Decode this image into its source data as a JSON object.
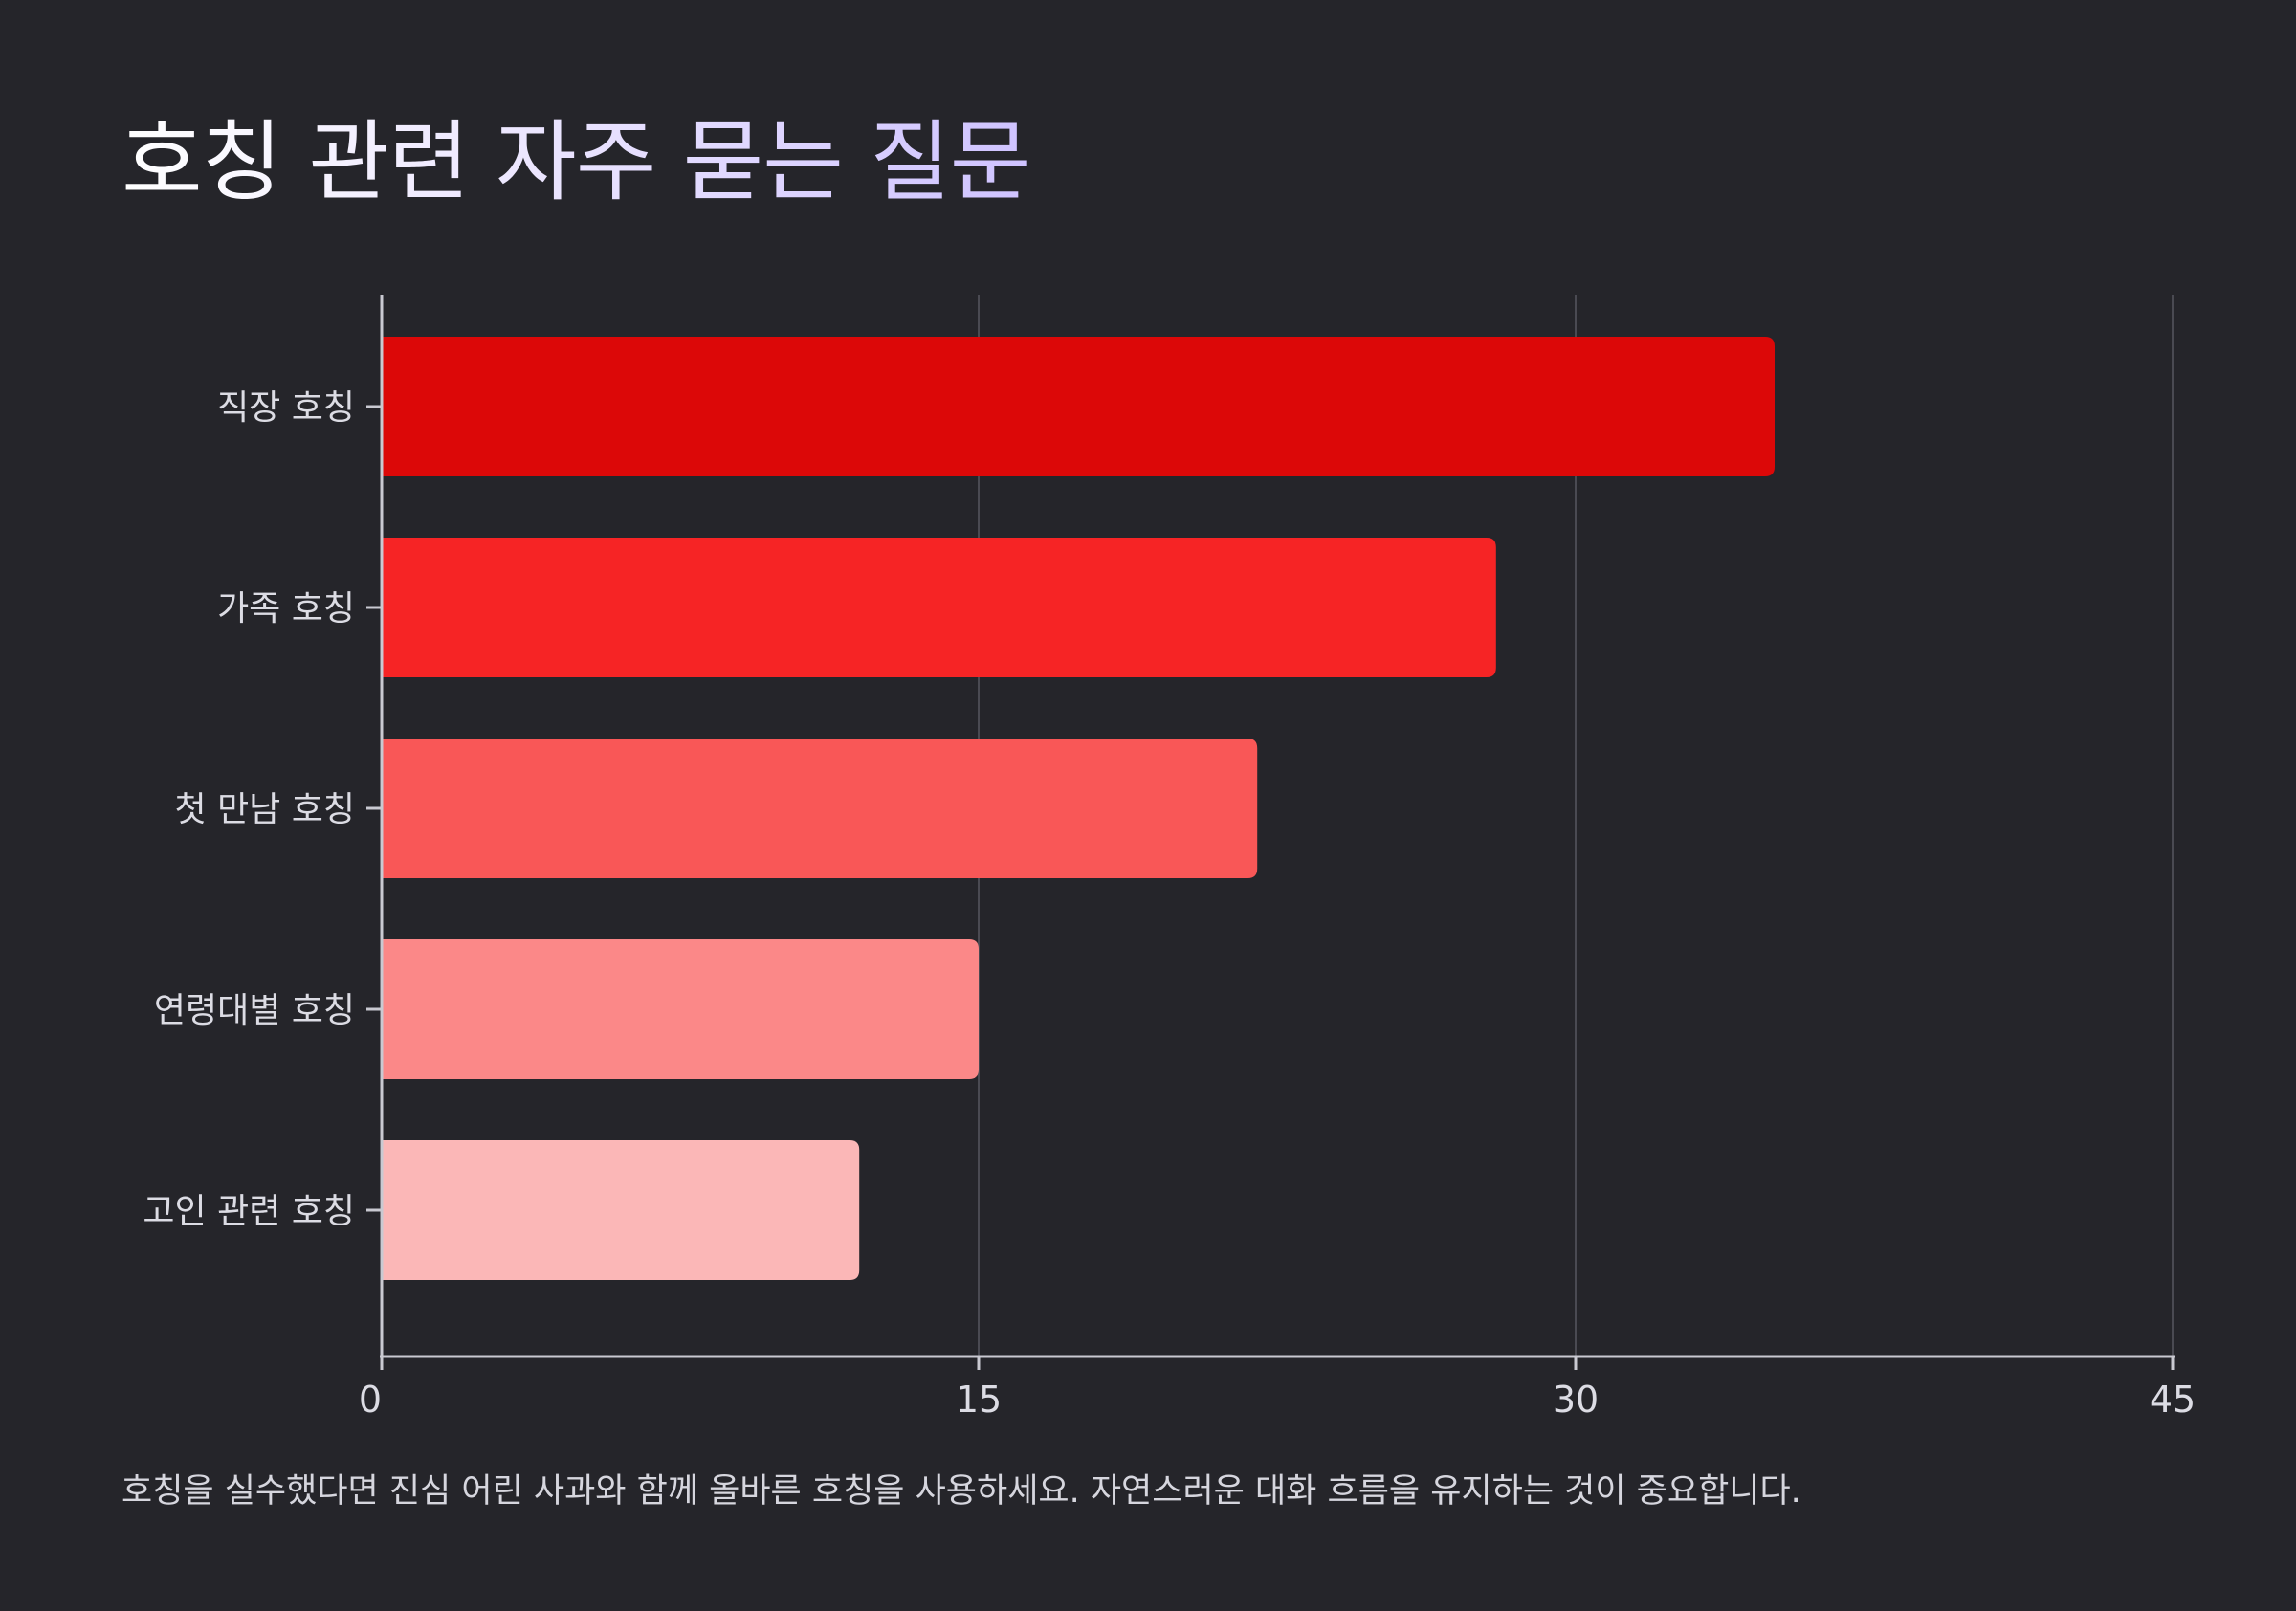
{
  "title": "호칭 관련 자주 묻는 질문",
  "footnote": "호칭을 실수했다면 진심 어린 사과와 함께 올바른 호칭을 사용하세요. 자연스러운 대화 흐름을 유지하는 것이 중요합니다.",
  "colors": {
    "background": "#25252a",
    "axis": "#c9c9d1",
    "grid": "#4a4a52",
    "bars": [
      "#dc0808",
      "#f62425",
      "#f95757",
      "#fb8888",
      "#fbb7b7"
    ]
  },
  "chart_data": {
    "type": "bar",
    "orientation": "horizontal",
    "categories": [
      "직장 호칭",
      "가족 호칭",
      "첫 만남 호칭",
      "연령대별 호칭",
      "고인 관련 호칭"
    ],
    "values": [
      35,
      28,
      22,
      15,
      12
    ],
    "xlim": [
      0,
      45
    ],
    "xticks": [
      "0",
      "15",
      "30",
      "45"
    ],
    "grid": "vertical",
    "xlabel": "",
    "ylabel": ""
  }
}
